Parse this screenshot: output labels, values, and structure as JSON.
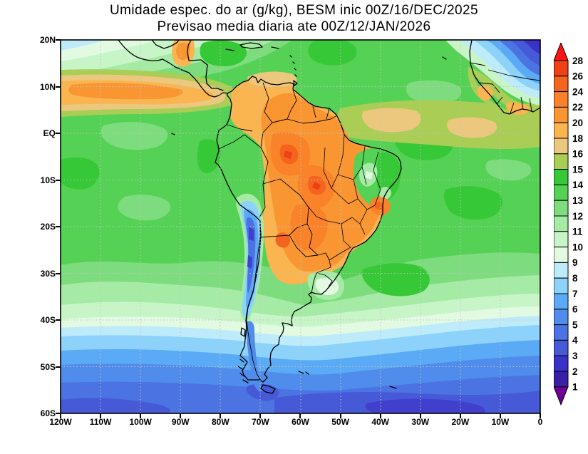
{
  "title": {
    "line1": "Umidade espec. do ar (g/kg), BESM inic 00Z/16/DEC/2025",
    "line2": "Previsao media diaria ate 00Z/12/JAN/2026"
  },
  "axes": {
    "y_ticks": [
      {
        "label": "20N",
        "lat": 20
      },
      {
        "label": "10N",
        "lat": 10
      },
      {
        "label": "EQ",
        "lat": 0
      },
      {
        "label": "10S",
        "lat": -10
      },
      {
        "label": "20S",
        "lat": -20
      },
      {
        "label": "30S",
        "lat": -30
      },
      {
        "label": "40S",
        "lat": -40
      },
      {
        "label": "50S",
        "lat": -50
      },
      {
        "label": "60S",
        "lat": -60
      }
    ],
    "x_ticks": [
      {
        "label": "120W",
        "lon": -120
      },
      {
        "label": "110W",
        "lon": -110
      },
      {
        "label": "100W",
        "lon": -100
      },
      {
        "label": "90W",
        "lon": -90
      },
      {
        "label": "80W",
        "lon": -80
      },
      {
        "label": "70W",
        "lon": -70
      },
      {
        "label": "60W",
        "lon": -60
      },
      {
        "label": "50W",
        "lon": -50
      },
      {
        "label": "40W",
        "lon": -40
      },
      {
        "label": "30W",
        "lon": -30
      },
      {
        "label": "20W",
        "lon": -20
      },
      {
        "label": "10W",
        "lon": -10
      },
      {
        "label": "0",
        "lon": 0
      }
    ]
  },
  "colorbar": {
    "boundary_labels": [
      "28",
      "26",
      "24",
      "22",
      "20",
      "18",
      "16",
      "15",
      "14",
      "13",
      "12",
      "11",
      "10",
      "9",
      "8",
      "7",
      "6",
      "5",
      "4",
      "3",
      "2",
      "1"
    ],
    "segment_colors_top_to_bottom": [
      "#F04114",
      "#F5641E",
      "#FA8228",
      "#FA9632",
      "#FAB450",
      "#EBC87D",
      "#AACD55",
      "#37C837",
      "#55D255",
      "#7DDC7D",
      "#A5EBA5",
      "#C8F5C8",
      "#E1FAE1",
      "#BEEBFA",
      "#8CD2FA",
      "#5AAAF5",
      "#508CEB",
      "#4B73E1",
      "#4659D7",
      "#3A32C8",
      "#381FA5"
    ],
    "top_arrow_color": "#FA1414",
    "bottom_arrow_color": "#6E0096"
  },
  "chart_data": {
    "type": "heatmap",
    "title": "Umidade espec. do ar (g/kg), BESM inic 00Z/16/DEC/2025",
    "subtitle": "Previsao media diaria ate 00Z/12/JAN/2026",
    "variable": "specific humidity of air",
    "units": "g/kg",
    "model": "BESM",
    "initialization": "00Z/16/DEC/2025",
    "valid_through": "00Z/12/JAN/2026",
    "projection": "lat-lon",
    "lon_range": [
      -120,
      0
    ],
    "lat_range": [
      -60,
      20
    ],
    "grid": "dotted gray graticule every 10 degrees",
    "contour_levels": [
      1,
      2,
      3,
      4,
      5,
      6,
      7,
      8,
      9,
      10,
      11,
      12,
      13,
      14,
      15,
      16,
      18,
      20,
      22,
      24,
      26,
      28
    ],
    "legend_position": "right vertical colorbar with end arrows",
    "grid_lons": [
      -120,
      -110,
      -100,
      -90,
      -80,
      -70,
      -60,
      -50,
      -40,
      -30,
      -20,
      -10,
      0
    ],
    "grid_lats": [
      20,
      10,
      0,
      -10,
      -20,
      -30,
      -40,
      -50,
      -60
    ],
    "approx_values_g_per_kg": [
      [
        11,
        12,
        13,
        14,
        17,
        14,
        13,
        12,
        12,
        11,
        8,
        4,
        3
      ],
      [
        16,
        18,
        18,
        16,
        19,
        20,
        18,
        16,
        14,
        14,
        12,
        6,
        8
      ],
      [
        14,
        14,
        15,
        16,
        17,
        20,
        20,
        18,
        15,
        14,
        14,
        14,
        12
      ],
      [
        13,
        14,
        13,
        13,
        14,
        21,
        22,
        20,
        16,
        14,
        13,
        13,
        13
      ],
      [
        12,
        12,
        13,
        13,
        12,
        6,
        20,
        20,
        14,
        13,
        13,
        13,
        12
      ],
      [
        11,
        12,
        12,
        11,
        11,
        5,
        15,
        16,
        13,
        12,
        12,
        12,
        11
      ],
      [
        9,
        9,
        9,
        9,
        8,
        6,
        8,
        8,
        8,
        9,
        9,
        9,
        9
      ],
      [
        6,
        6,
        6,
        6,
        6,
        5,
        5,
        5,
        5,
        6,
        6,
        6,
        6
      ],
      [
        4,
        5,
        4,
        4,
        4,
        3,
        3,
        3,
        3,
        4,
        4,
        4,
        4
      ]
    ],
    "features": [
      "orange maximum (20-26 g/kg) over Amazon basin and central Brazil",
      "narrow dry blue strip (3-6 g/kg) along the Andes from Peru to central Chile",
      "orange ITCZ band near 5-12N over eastern Pacific and equatorial Atlantic",
      "green (12-15 g/kg) tropical oceans with light-green cooler patches",
      "progressive blue bands south of 40S down to 2-4 g/kg near 60S",
      "very dry dark blue core (2-4 g/kg) over Sahara / West Africa in top-right corner",
      "light green semi-arid patch over Northeast Brazil"
    ]
  }
}
